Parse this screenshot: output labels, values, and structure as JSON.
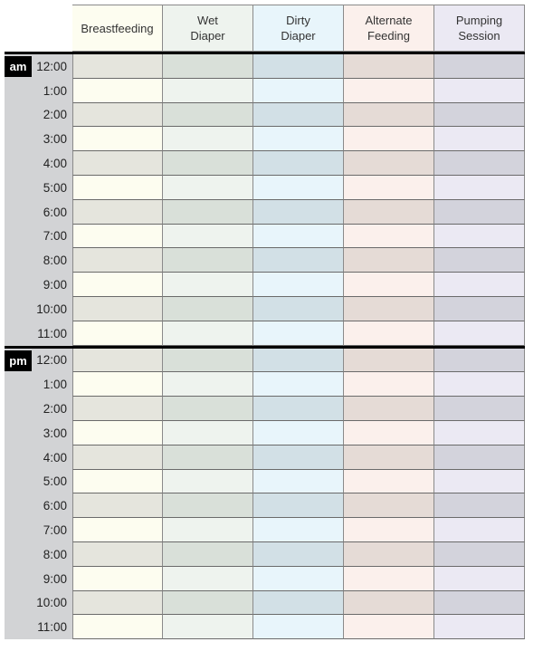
{
  "columns": [
    {
      "label": "Breastfeeding",
      "light": "#fdfdf0",
      "dark": "#e5e5dd"
    },
    {
      "label": "Wet\nDiaper",
      "light": "#eef3ee",
      "dark": "#d9e0d9"
    },
    {
      "label": "Dirty\nDiaper",
      "light": "#e8f5fb",
      "dark": "#d2e0e6"
    },
    {
      "label": "Alternate\nFeeding",
      "light": "#fbf0ec",
      "dark": "#e5dbd6"
    },
    {
      "label": "Pumping\nSession",
      "light": "#ebe9f3",
      "dark": "#d3d3dc"
    }
  ],
  "blocks": [
    {
      "period": "am",
      "hours": [
        "12:00",
        "1:00",
        "2:00",
        "3:00",
        "4:00",
        "5:00",
        "6:00",
        "7:00",
        "8:00",
        "9:00",
        "10:00",
        "11:00"
      ]
    },
    {
      "period": "pm",
      "hours": [
        "12:00",
        "1:00",
        "2:00",
        "3:00",
        "4:00",
        "5:00",
        "6:00",
        "7:00",
        "8:00",
        "9:00",
        "10:00",
        "11:00"
      ]
    }
  ]
}
